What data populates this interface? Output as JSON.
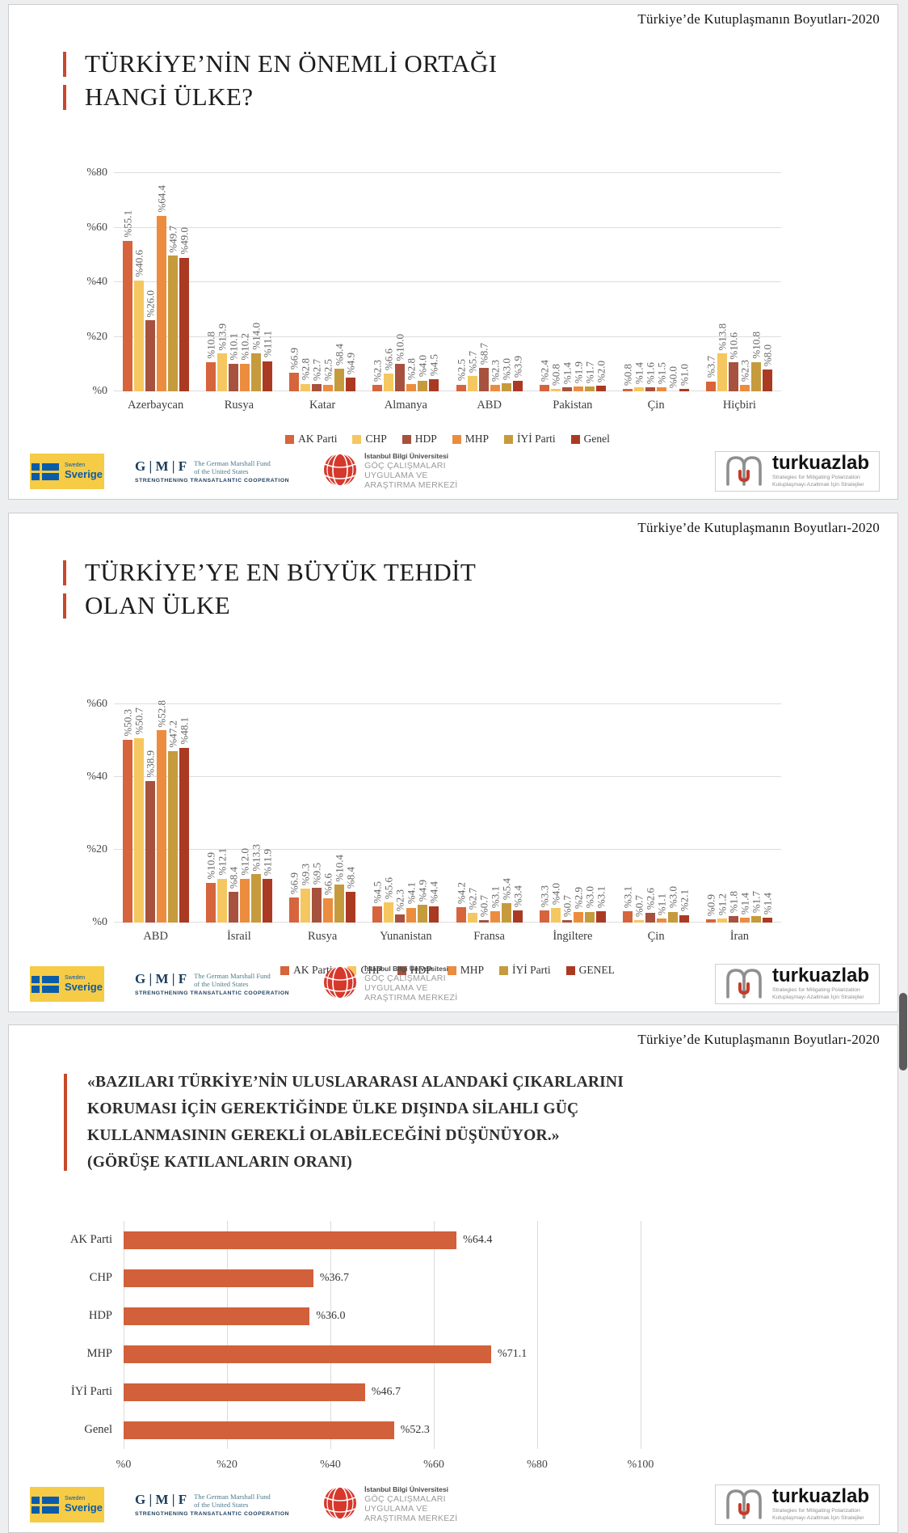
{
  "page": {
    "header": "Türkiye’de Kutuplaşmanın Boyutları-2020",
    "accent_color": "#C7492B",
    "background_color": "#edeef0"
  },
  "slides": [
    {
      "title_lines": [
        "TÜRKİYE’NİN EN ÖNEMLİ ORTAĞI",
        "HANGİ ÜLKE?"
      ]
    },
    {
      "title_lines": [
        "TÜRKİYE’YE EN BÜYÜK TEHDİT",
        "OLAN ÜLKE"
      ]
    },
    {
      "title_lines": [
        "«BAZILARI TÜRKİYE’NİN ULUSLARARASI ALANDAKİ ÇIKARLARINI",
        "KORUMASI İÇİN GEREKTİĞİNDE ÜLKE DIŞINDA SİLAHLI GÜÇ",
        "KULLANMASININ GEREKLİ OLABİLECEĞİNİ DÜŞÜNÜYOR.»",
        "(GÖRÜŞE KATILANLARIN ORANI)"
      ]
    }
  ],
  "footer": {
    "sweden": {
      "top": "Sweden",
      "bottom": "Sverige"
    },
    "gmf": {
      "wordmark": "G | M | F",
      "name1": "The German Marshall Fund",
      "name2": "of the United States",
      "tagline": "STRENGTHENING TRANSATLANTIC COOPERATION"
    },
    "bilgi": {
      "university": "İstanbul Bilgi Üniversitesi",
      "center1": "GÖÇ ÇALIŞMALARI",
      "center2": "UYGULAMA VE",
      "center3": "ARAŞTIRMA MERKEZİ"
    },
    "turkuazlab": {
      "name": "turkuazlab",
      "tagline1": "Strategies for Mitigating Polarization",
      "tagline2": "Kutuplaşmayı Azaltmak İçin Stratejiler"
    }
  },
  "chart_data": [
    {
      "type": "bar",
      "title": "TÜRKİYE’NİN EN ÖNEMLİ ORTAĞI HANGİ ÜLKE?",
      "categories": [
        "Azerbaycan",
        "Rusya",
        "Katar",
        "Almanya",
        "ABD",
        "Pakistan",
        "Çin",
        "Hiçbiri"
      ],
      "series": [
        {
          "name": "AK Parti",
          "color": "#D6643C",
          "values": [
            55.1,
            10.8,
            6.9,
            2.3,
            2.5,
            2.4,
            0.8,
            3.7
          ]
        },
        {
          "name": "CHP",
          "color": "#F5C760",
          "values": [
            40.6,
            13.9,
            2.8,
            6.6,
            5.7,
            0.8,
            1.4,
            13.8
          ]
        },
        {
          "name": "HDP",
          "color": "#A6523E",
          "values": [
            26.0,
            10.1,
            2.7,
            10.0,
            8.7,
            1.4,
            1.6,
            10.6
          ]
        },
        {
          "name": "MHP",
          "color": "#EC8C3F",
          "values": [
            64.4,
            10.2,
            2.5,
            2.8,
            2.3,
            1.9,
            1.5,
            2.3
          ]
        },
        {
          "name": "İYİ Parti",
          "color": "#C59B3D",
          "values": [
            49.7,
            14.0,
            8.4,
            4.0,
            3.0,
            1.7,
            0.0,
            10.8
          ]
        },
        {
          "name": "Genel",
          "color": "#AB3A22",
          "values": [
            49.0,
            11.1,
            4.9,
            4.5,
            3.9,
            2.0,
            1.0,
            8.0
          ]
        }
      ],
      "ylim": [
        0,
        80
      ],
      "yticks": [
        0,
        20,
        40,
        60,
        80
      ],
      "grid": "horizontal",
      "legend_position": "bottom",
      "label_format": "%value, rotated 90°"
    },
    {
      "type": "bar",
      "title": "TÜRKİYE’YE EN BÜYÜK TEHDİT OLAN ÜLKE",
      "categories": [
        "ABD",
        "İsrail",
        "Rusya",
        "Yunanistan",
        "Fransa",
        "İngiltere",
        "Çin",
        "İran"
      ],
      "series": [
        {
          "name": "AK Parti",
          "color": "#D6643C",
          "values": [
            50.3,
            10.9,
            6.9,
            4.5,
            4.2,
            3.3,
            3.1,
            0.9
          ]
        },
        {
          "name": "CHP",
          "color": "#F5C760",
          "values": [
            50.7,
            12.1,
            9.3,
            5.6,
            2.7,
            4.0,
            0.7,
            1.2
          ]
        },
        {
          "name": "HDP",
          "color": "#A6523E",
          "values": [
            38.9,
            8.4,
            9.5,
            2.3,
            0.7,
            0.7,
            2.6,
            1.8
          ]
        },
        {
          "name": "MHP",
          "color": "#EC8C3F",
          "values": [
            52.8,
            12.0,
            6.6,
            4.1,
            3.1,
            2.9,
            1.1,
            1.4
          ]
        },
        {
          "name": "İYİ Parti",
          "color": "#C59B3D",
          "values": [
            47.2,
            13.3,
            10.4,
            4.9,
            5.4,
            3.0,
            3.0,
            1.7
          ]
        },
        {
          "name": "GENEL",
          "color": "#AB3A22",
          "values": [
            48.1,
            11.9,
            8.4,
            4.4,
            3.4,
            3.1,
            2.1,
            1.4
          ]
        }
      ],
      "ylim": [
        0,
        60
      ],
      "yticks": [
        0,
        20,
        40,
        60
      ],
      "grid": "horizontal",
      "legend_position": "bottom",
      "label_format": "%value, rotated 90°"
    },
    {
      "type": "bar-horizontal",
      "title": "«BAZILARI TÜRKİYE’NİN ULUSLARARASI ALANDAKİ ÇIKARLARINI KORUMASI İÇİN GEREKTİĞİNDE ÜLKE DIŞINDA SİLAHLI GÜÇ KULLANMASININ GEREKLİ OLABİLECEĞİNİ DÜŞÜNÜYOR.» (GÖRÜŞE KATILANLARIN ORANI)",
      "categories": [
        "AK Parti",
        "CHP",
        "HDP",
        "MHP",
        "İYİ Parti",
        "Genel"
      ],
      "values": [
        64.4,
        36.7,
        36.0,
        71.1,
        46.7,
        52.3
      ],
      "bar_color": "#D2603B",
      "xlim": [
        0,
        100
      ],
      "xticks": [
        0,
        20,
        40,
        60,
        80,
        100
      ],
      "grid": "vertical"
    }
  ]
}
